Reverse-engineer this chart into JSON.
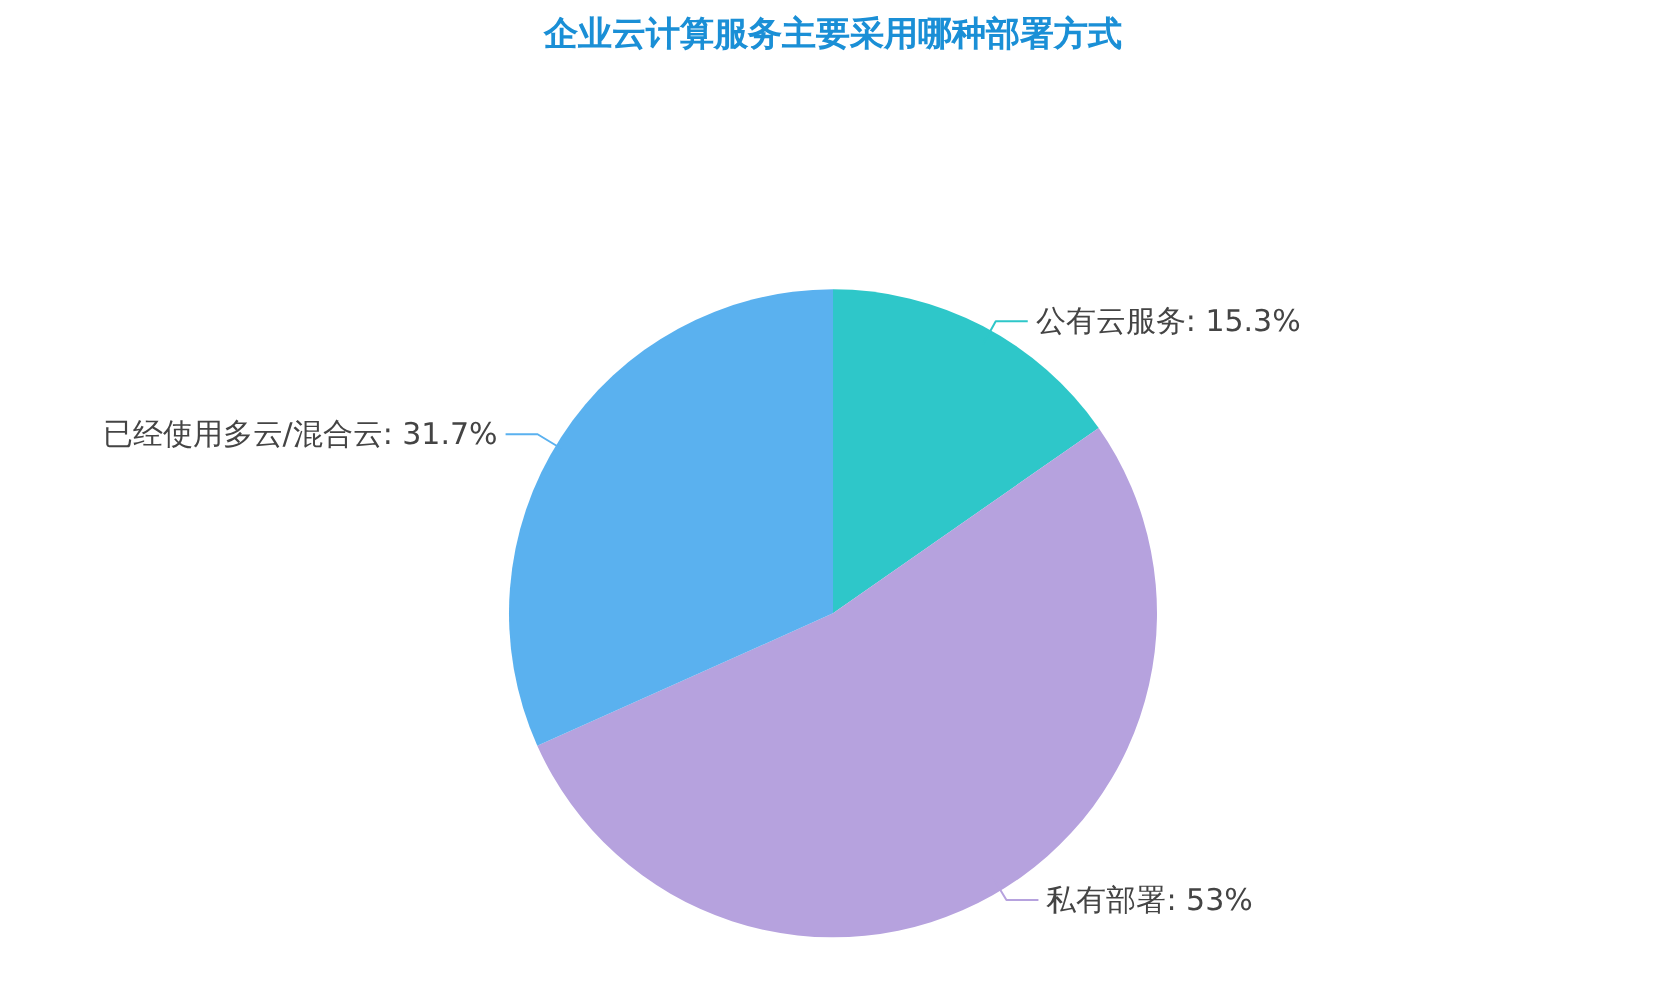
{
  "chart_data": {
    "type": "pie",
    "title": "企业云计算服务主要采用哪种部署方式",
    "categories": [
      "公有云服务",
      "私有部署",
      "已经使用多云/混合云"
    ],
    "values": [
      15.3,
      53,
      31.7
    ],
    "value_labels": [
      "15.3%",
      "53%",
      "31.7%"
    ],
    "colors": [
      "#2ec7c9",
      "#b6a2de",
      "#5ab1ef"
    ]
  }
}
